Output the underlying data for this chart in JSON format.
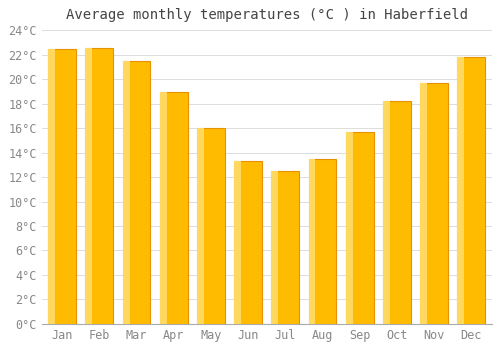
{
  "months": [
    "Jan",
    "Feb",
    "Mar",
    "Apr",
    "May",
    "Jun",
    "Jul",
    "Aug",
    "Sep",
    "Oct",
    "Nov",
    "Dec"
  ],
  "temperatures": [
    22.5,
    22.6,
    21.5,
    19.0,
    16.0,
    13.3,
    12.5,
    13.5,
    15.7,
    18.2,
    19.7,
    21.8
  ],
  "bar_color_main": "#FFBB00",
  "bar_color_light": "#FFD860",
  "bar_color_edge": "#E89000",
  "title": "Average monthly temperatures (°C ) in Haberfield",
  "ylim": [
    0,
    24
  ],
  "yticks": [
    0,
    2,
    4,
    6,
    8,
    10,
    12,
    14,
    16,
    18,
    20,
    22,
    24
  ],
  "background_color": "#FFFFFF",
  "grid_color": "#DDDDDD",
  "title_fontsize": 10,
  "tick_fontsize": 8.5,
  "font_family": "monospace"
}
